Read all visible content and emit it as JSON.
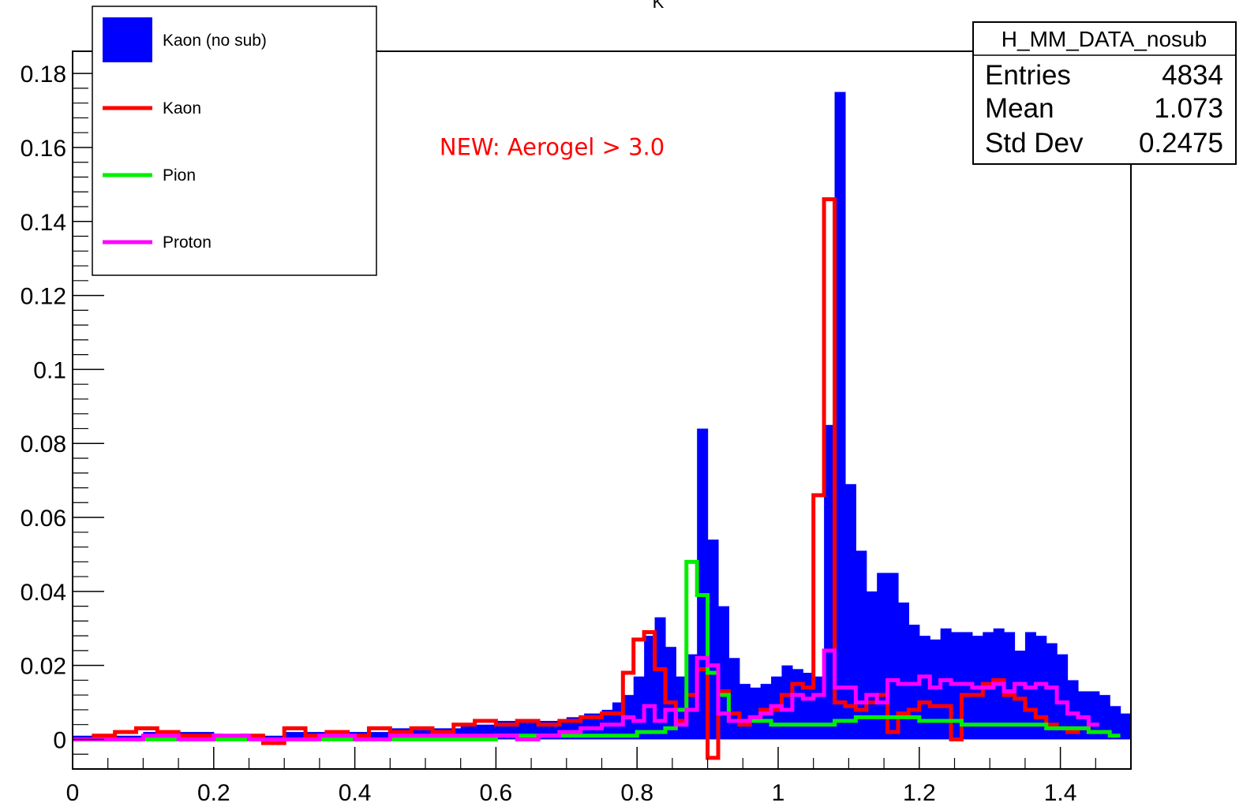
{
  "chart_data": {
    "type": "bar",
    "title_fragment": "K",
    "xlabel": "",
    "ylabel": "",
    "xlim": [
      0,
      1.5
    ],
    "ylim": [
      -0.008,
      0.186
    ],
    "x_ticks": [
      0,
      0.2,
      0.4,
      0.6,
      0.8,
      1,
      1.2,
      1.4
    ],
    "x_tick_labels": [
      "0",
      "0.2",
      "0.4",
      "0.6",
      "0.8",
      "1",
      "1.2",
      "1.4"
    ],
    "y_ticks": [
      0,
      0.02,
      0.04,
      0.06,
      0.08,
      0.1,
      0.12,
      0.14,
      0.16,
      0.18
    ],
    "y_tick_labels": [
      "0",
      "0.02",
      "0.04",
      "0.06",
      "0.08",
      "0.1",
      "0.12",
      "0.14",
      "0.16",
      "0.18"
    ],
    "bin_width": 0.015,
    "grid": false,
    "legend_position": "top-left",
    "series": [
      {
        "name": "Kaon (no sub)",
        "style": "filled",
        "color": "#0000ff",
        "x": [
          0.87,
          0.885,
          0.9,
          1.065,
          1.08,
          1.095,
          1.11
        ],
        "values": [
          0.023,
          0.084,
          0.054,
          0.085,
          0.175,
          0.069,
          0.051
        ],
        "x_dense": [
          0.0,
          0.05,
          0.1,
          0.15,
          0.2,
          0.25,
          0.3,
          0.35,
          0.4,
          0.45,
          0.5,
          0.55,
          0.6,
          0.65,
          0.7,
          0.725,
          0.75,
          0.765,
          0.78,
          0.795,
          0.81,
          0.825,
          0.84,
          0.855,
          0.915,
          0.93,
          0.945,
          0.96,
          0.975,
          0.99,
          1.005,
          1.02,
          1.035,
          1.05,
          1.125,
          1.14,
          1.155,
          1.17,
          1.185,
          1.2,
          1.215,
          1.23,
          1.245,
          1.26,
          1.275,
          1.29,
          1.305,
          1.32,
          1.335,
          1.35,
          1.365,
          1.38,
          1.395,
          1.41,
          1.425,
          1.44,
          1.455,
          1.47,
          1.485
        ],
        "values_dense": [
          0.001,
          0.001,
          0.002,
          0.002,
          0.001,
          0.001,
          0.002,
          0.002,
          0.002,
          0.003,
          0.003,
          0.004,
          0.005,
          0.005,
          0.006,
          0.007,
          0.008,
          0.01,
          0.012,
          0.017,
          0.028,
          0.033,
          0.025,
          0.017,
          0.036,
          0.022,
          0.015,
          0.014,
          0.015,
          0.017,
          0.02,
          0.019,
          0.018,
          0.017,
          0.04,
          0.045,
          0.045,
          0.037,
          0.031,
          0.028,
          0.027,
          0.03,
          0.029,
          0.029,
          0.028,
          0.029,
          0.03,
          0.029,
          0.024,
          0.029,
          0.028,
          0.026,
          0.023,
          0.016,
          0.013,
          0.013,
          0.012,
          0.009,
          0.007
        ]
      },
      {
        "name": "Kaon",
        "style": "step",
        "color": "#ff0000",
        "x": [
          0.0,
          0.03,
          0.06,
          0.09,
          0.12,
          0.15,
          0.18,
          0.21,
          0.24,
          0.27,
          0.3,
          0.33,
          0.36,
          0.39,
          0.42,
          0.45,
          0.48,
          0.51,
          0.54,
          0.57,
          0.6,
          0.63,
          0.66,
          0.69,
          0.72,
          0.75,
          0.78,
          0.795,
          0.81,
          0.825,
          0.84,
          0.855,
          0.87,
          0.885,
          0.9,
          0.915,
          0.93,
          0.945,
          0.96,
          0.975,
          0.99,
          1.005,
          1.02,
          1.035,
          1.05,
          1.065,
          1.08,
          1.095,
          1.11,
          1.125,
          1.14,
          1.155,
          1.17,
          1.185,
          1.2,
          1.215,
          1.23,
          1.245,
          1.26,
          1.275,
          1.29,
          1.305,
          1.32,
          1.335,
          1.35,
          1.365,
          1.38,
          1.395,
          1.41,
          1.425,
          1.44
        ],
        "values": [
          0.0,
          0.001,
          0.002,
          0.003,
          0.002,
          0.001,
          0.001,
          0.0,
          0.001,
          -0.001,
          0.003,
          0.001,
          0.002,
          0.001,
          0.003,
          0.002,
          0.003,
          0.002,
          0.004,
          0.005,
          0.004,
          0.005,
          0.004,
          0.005,
          0.006,
          0.007,
          0.018,
          0.027,
          0.029,
          0.019,
          0.01,
          0.005,
          0.012,
          0.019,
          -0.005,
          0.013,
          0.007,
          0.004,
          0.006,
          0.008,
          0.008,
          0.012,
          0.015,
          0.014,
          0.066,
          0.146,
          0.01,
          0.009,
          0.008,
          0.01,
          0.012,
          0.002,
          0.007,
          0.008,
          0.01,
          0.009,
          0.009,
          0.0,
          0.012,
          0.012,
          0.015,
          0.016,
          0.012,
          0.011,
          0.008,
          0.006,
          0.004,
          0.003,
          0.002,
          0.003,
          0.002
        ]
      },
      {
        "name": "Pion",
        "style": "step",
        "color": "#00ee00",
        "x": [
          0.0,
          0.1,
          0.2,
          0.3,
          0.4,
          0.5,
          0.6,
          0.7,
          0.75,
          0.8,
          0.84,
          0.855,
          0.87,
          0.885,
          0.9,
          0.915,
          0.93,
          0.945,
          0.96,
          0.99,
          1.02,
          1.05,
          1.08,
          1.11,
          1.14,
          1.17,
          1.2,
          1.23,
          1.26,
          1.29,
          1.32,
          1.35,
          1.38,
          1.41,
          1.44,
          1.47
        ],
        "values": [
          0.0,
          0.0,
          0.0,
          0.0,
          0.0,
          0.0,
          0.001,
          0.001,
          0.001,
          0.002,
          0.003,
          0.008,
          0.048,
          0.039,
          0.018,
          0.012,
          0.005,
          0.005,
          0.005,
          0.004,
          0.004,
          0.004,
          0.005,
          0.006,
          0.006,
          0.006,
          0.005,
          0.005,
          0.004,
          0.004,
          0.004,
          0.004,
          0.003,
          0.003,
          0.002,
          0.001
        ]
      },
      {
        "name": "Proton",
        "style": "step",
        "color": "#ff00ff",
        "x": [
          0.0,
          0.05,
          0.1,
          0.15,
          0.2,
          0.25,
          0.3,
          0.35,
          0.4,
          0.45,
          0.5,
          0.55,
          0.6,
          0.63,
          0.66,
          0.69,
          0.72,
          0.75,
          0.78,
          0.795,
          0.81,
          0.825,
          0.84,
          0.855,
          0.87,
          0.885,
          0.9,
          0.915,
          0.93,
          0.945,
          0.96,
          0.975,
          0.99,
          1.005,
          1.02,
          1.035,
          1.05,
          1.065,
          1.08,
          1.095,
          1.11,
          1.125,
          1.14,
          1.155,
          1.17,
          1.185,
          1.2,
          1.215,
          1.23,
          1.245,
          1.26,
          1.275,
          1.29,
          1.305,
          1.32,
          1.335,
          1.35,
          1.365,
          1.38,
          1.395,
          1.41,
          1.425,
          1.44
        ],
        "values": [
          0.0,
          0.0,
          0.001,
          0.0,
          0.001,
          0.0,
          0.0,
          0.001,
          0.0,
          0.001,
          0.001,
          0.001,
          0.001,
          0.0,
          0.001,
          0.002,
          0.003,
          0.004,
          0.006,
          0.005,
          0.009,
          0.005,
          0.008,
          0.004,
          0.008,
          0.022,
          0.02,
          0.007,
          0.005,
          0.005,
          0.006,
          0.007,
          0.009,
          0.008,
          0.012,
          0.011,
          0.012,
          0.024,
          0.014,
          0.014,
          0.01,
          0.012,
          0.01,
          0.016,
          0.015,
          0.015,
          0.017,
          0.014,
          0.016,
          0.015,
          0.015,
          0.014,
          0.014,
          0.015,
          0.013,
          0.015,
          0.014,
          0.015,
          0.014,
          0.01,
          0.007,
          0.006,
          0.004
        ]
      }
    ],
    "annotation": {
      "text": "NEW: Aerogel > 3.0",
      "color": "#ff0000",
      "x": 0.52,
      "y": 0.158
    },
    "stats_box": {
      "title": "H_MM_DATA_nosub",
      "rows": [
        {
          "label": "Entries",
          "value": "4834"
        },
        {
          "label": "Mean",
          "value": "1.073"
        },
        {
          "label": "Std Dev",
          "value": "0.2475"
        }
      ]
    }
  }
}
